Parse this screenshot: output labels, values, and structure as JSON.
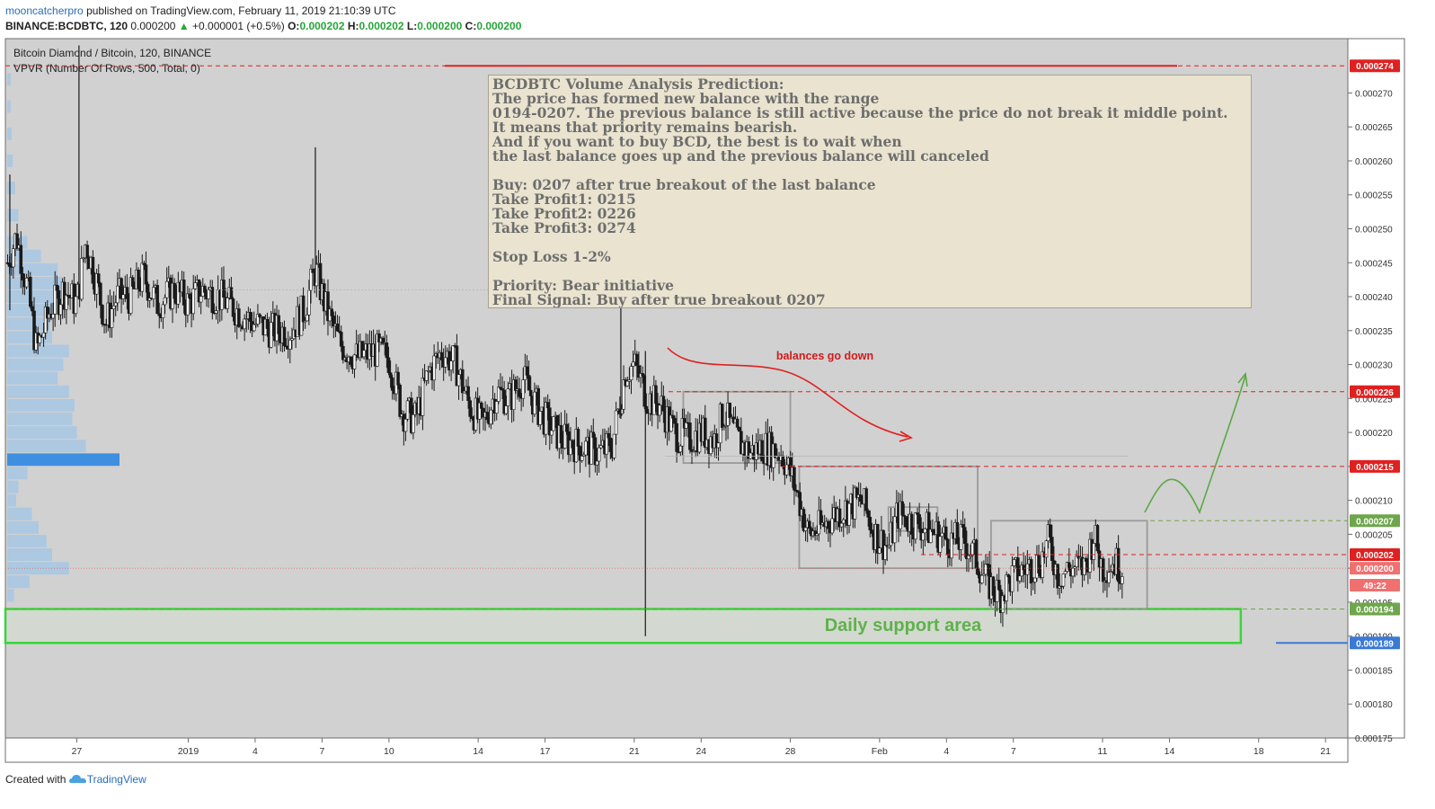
{
  "header": {
    "author": "mooncatcherpro",
    "published": "published on TradingView.com, February 11, 2019 21:10:39 UTC",
    "symbol": "BINANCE:BCDBTC, 120",
    "last": "0.000200",
    "change_arrow": "▲",
    "change": "+0.000001 (+0.5%)",
    "o_label": "O:",
    "o": "0.000202",
    "h_label": "H:",
    "h": "0.000202",
    "l_label": "L:",
    "l": "0.000200",
    "c_label": "C:",
    "c": "0.000200"
  },
  "legend": {
    "title": "Bitcoin Diamond / Bitcoin, 120, BINANCE",
    "indicator": "VPVR (Number Of Rows, 500, Total, 0)"
  },
  "annotation": {
    "lines": [
      "BCDBTC Volume Analysis Prediction:",
      "The price has formed new balance with the range",
      "0194-0207. The previous balance is still active because the price do not break it middle point.",
      "It means that priority remains bearish.",
      "And if you want to buy BCD, the best is to wait when",
      "the last balance goes up and the previous balance will canceled",
      "",
      "Buy: 0207 after true breakout of the last balance",
      "Take Profit1: 0215",
      "Take Profit2: 0226",
      "Take Profit3: 0274",
      "",
      "Stop Loss 1-2%",
      "",
      "Priority: Bear initiative",
      "Final Signal: Buy after true breakout 0207"
    ],
    "balances_label": "balances go down",
    "support_label": "Daily support area"
  },
  "footer": {
    "created": "Created with",
    "brand": "TradingView"
  },
  "chart_data": {
    "type": "candlestick",
    "title": "Bitcoin Diamond / Bitcoin, 120, BINANCE",
    "y_ticks": [
      "0.000270",
      "0.000265",
      "0.000260",
      "0.000255",
      "0.000250",
      "0.000245",
      "0.000240",
      "0.000235",
      "0.000230",
      "0.000225",
      "0.000220",
      "0.000215",
      "0.000210",
      "0.000205",
      "0.000200",
      "0.000195",
      "0.000190",
      "0.000185",
      "0.000180",
      "0.000175"
    ],
    "x_ticks": [
      {
        "label": "27",
        "day": 27
      },
      {
        "label": "2019",
        "day": 32
      },
      {
        "label": "4",
        "day": 35
      },
      {
        "label": "7",
        "day": 38
      },
      {
        "label": "10",
        "day": 41
      },
      {
        "label": "14",
        "day": 45
      },
      {
        "label": "17",
        "day": 48
      },
      {
        "label": "21",
        "day": 52
      },
      {
        "label": "24",
        "day": 55
      },
      {
        "label": "28",
        "day": 59
      },
      {
        "label": "Feb",
        "day": 63
      },
      {
        "label": "4",
        "day": 66
      },
      {
        "label": "7",
        "day": 69
      },
      {
        "label": "11",
        "day": 73
      },
      {
        "label": "14",
        "day": 76
      },
      {
        "label": "18",
        "day": 80
      },
      {
        "label": "21",
        "day": 83
      }
    ],
    "ylim": [
      0.000175,
      0.000278
    ],
    "xlim_days": [
      23.8,
      84.0
    ],
    "price_levels": [
      {
        "label": "0.000274",
        "value": 0.000274,
        "color": "#e02020"
      },
      {
        "label": "0.000226",
        "value": 0.000226,
        "color": "#e02020"
      },
      {
        "label": "0.000215",
        "value": 0.000215,
        "color": "#e02020"
      },
      {
        "label": "0.000207",
        "value": 0.000207,
        "color": "#6ea64b"
      },
      {
        "label": "0.000202",
        "value": 0.000202,
        "color": "#e02020"
      },
      {
        "label": "0.000200",
        "value": 0.0002,
        "color": "#f07070"
      },
      {
        "label": "49:22",
        "value": 0.0001975,
        "color": "#f07070"
      },
      {
        "label": "0.000194",
        "value": 0.000194,
        "color": "#6ea64b"
      },
      {
        "label": "0.000189",
        "value": 0.000189,
        "color": "#3a79d6"
      }
    ],
    "balance_zones": [
      {
        "from_day": 54.2,
        "to_day": 59.0,
        "low": 0.0002155,
        "high": 0.000226
      },
      {
        "from_day": 59.4,
        "to_day": 67.4,
        "low": 0.0002,
        "high": 0.000215
      },
      {
        "from_day": 63.4,
        "to_day": 65.6,
        "low": 0.0002055,
        "high": 0.000209
      },
      {
        "from_day": 68.0,
        "to_day": 75.0,
        "low": 0.000194,
        "high": 0.000207
      }
    ],
    "support_zone": {
      "from_day": 23.8,
      "to_day": 79.2,
      "low": 0.000189,
      "high": 0.000194
    },
    "path": [
      [
        23.9,
        0.000245
      ],
      [
        24.3,
        0.000249
      ],
      [
        24.8,
        0.000241
      ],
      [
        25.2,
        0.000232
      ],
      [
        25.8,
        0.000238
      ],
      [
        26.4,
        0.000241
      ],
      [
        27.0,
        0.000239
      ],
      [
        27.4,
        0.000248
      ],
      [
        27.9,
        0.000242
      ],
      [
        28.3,
        0.000236
      ],
      [
        28.8,
        0.00024
      ],
      [
        29.4,
        0.00024
      ],
      [
        30.0,
        0.000243
      ],
      [
        30.6,
        0.000239
      ],
      [
        31.4,
        0.000241
      ],
      [
        32.0,
        0.000239
      ],
      [
        32.6,
        0.000241
      ],
      [
        33.4,
        0.00024
      ],
      [
        34.2,
        0.000238
      ],
      [
        35.0,
        0.000236
      ],
      [
        35.8,
        0.000235
      ],
      [
        36.6,
        0.000235
      ],
      [
        37.2,
        0.000238
      ],
      [
        37.7,
        0.000244
      ],
      [
        38.2,
        0.000238
      ],
      [
        38.8,
        0.000233
      ],
      [
        39.6,
        0.000231
      ],
      [
        40.4,
        0.000232
      ],
      [
        41.0,
        0.000231
      ],
      [
        41.6,
        0.000223
      ],
      [
        42.2,
        0.000222
      ],
      [
        42.8,
        0.000229
      ],
      [
        43.4,
        0.000232
      ],
      [
        44.0,
        0.00023
      ],
      [
        44.6,
        0.000224
      ],
      [
        45.2,
        0.000221
      ],
      [
        45.8,
        0.000226
      ],
      [
        46.4,
        0.000225
      ],
      [
        47.0,
        0.000228
      ],
      [
        47.6,
        0.000224
      ],
      [
        48.2,
        0.000221
      ],
      [
        48.8,
        0.000219
      ],
      [
        49.6,
        0.000218
      ],
      [
        50.4,
        0.000217
      ],
      [
        51.0,
        0.000218
      ],
      [
        51.6,
        0.000229
      ],
      [
        52.0,
        0.00023
      ],
      [
        52.6,
        0.000225
      ],
      [
        53.2,
        0.000224
      ],
      [
        53.8,
        0.00022
      ],
      [
        54.4,
        0.000219
      ],
      [
        55.0,
        0.00022
      ],
      [
        55.6,
        0.000219
      ],
      [
        56.0,
        0.000223
      ],
      [
        56.6,
        0.000219
      ],
      [
        57.2,
        0.000217
      ],
      [
        57.8,
        0.000218
      ],
      [
        58.6,
        0.000217
      ],
      [
        59.0,
        0.000214
      ],
      [
        59.4,
        0.00021
      ],
      [
        59.8,
        0.000205
      ],
      [
        60.4,
        0.000206
      ],
      [
        61.0,
        0.000208
      ],
      [
        61.6,
        0.000209
      ],
      [
        62.2,
        0.00021
      ],
      [
        62.8,
        0.000205
      ],
      [
        63.4,
        0.000203
      ],
      [
        63.8,
        0.000208
      ],
      [
        64.4,
        0.000207
      ],
      [
        65.0,
        0.000206
      ],
      [
        65.6,
        0.000205
      ],
      [
        66.2,
        0.000204
      ],
      [
        66.8,
        0.000204
      ],
      [
        67.4,
        0.000201
      ],
      [
        67.8,
        0.000198
      ],
      [
        68.4,
        0.000196
      ],
      [
        69.0,
        0.000199
      ],
      [
        69.6,
        0.0002
      ],
      [
        70.2,
        0.000201
      ],
      [
        70.6,
        0.000204
      ],
      [
        71.0,
        0.000199
      ],
      [
        71.6,
        0.0002
      ],
      [
        72.2,
        0.0002
      ],
      [
        72.6,
        0.000205
      ],
      [
        73.0,
        0.0002
      ],
      [
        73.5,
        0.000201
      ],
      [
        73.9,
        0.0002
      ]
    ],
    "vpvr_rows": [
      {
        "price": 0.000272,
        "volume": 0.03
      },
      {
        "price": 0.000268,
        "volume": 0.03
      },
      {
        "price": 0.000264,
        "volume": 0.04
      },
      {
        "price": 0.00026,
        "volume": 0.05
      },
      {
        "price": 0.000256,
        "volume": 0.07
      },
      {
        "price": 0.000252,
        "volume": 0.1
      },
      {
        "price": 0.000248,
        "volume": 0.18
      },
      {
        "price": 0.000246,
        "volume": 0.3
      },
      {
        "price": 0.000244,
        "volume": 0.45
      },
      {
        "price": 0.000242,
        "volume": 0.5
      },
      {
        "price": 0.00024,
        "volume": 0.48
      },
      {
        "price": 0.000238,
        "volume": 0.42
      },
      {
        "price": 0.000236,
        "volume": 0.38
      },
      {
        "price": 0.000234,
        "volume": 0.4
      },
      {
        "price": 0.000232,
        "volume": 0.55
      },
      {
        "price": 0.00023,
        "volume": 0.5
      },
      {
        "price": 0.000228,
        "volume": 0.45
      },
      {
        "price": 0.000226,
        "volume": 0.55
      },
      {
        "price": 0.000224,
        "volume": 0.6
      },
      {
        "price": 0.000222,
        "volume": 0.58
      },
      {
        "price": 0.00022,
        "volume": 0.62
      },
      {
        "price": 0.000218,
        "volume": 0.7
      },
      {
        "price": 0.000216,
        "volume": 1.0
      },
      {
        "price": 0.000214,
        "volume": 0.18
      },
      {
        "price": 0.000212,
        "volume": 0.1
      },
      {
        "price": 0.00021,
        "volume": 0.08
      },
      {
        "price": 0.000208,
        "volume": 0.22
      },
      {
        "price": 0.000206,
        "volume": 0.28
      },
      {
        "price": 0.000204,
        "volume": 0.35
      },
      {
        "price": 0.000202,
        "volume": 0.4
      },
      {
        "price": 0.0002,
        "volume": 0.55
      },
      {
        "price": 0.000198,
        "volume": 0.2
      },
      {
        "price": 0.000196,
        "volume": 0.06
      }
    ],
    "vpvr_poc": 0.000216
  }
}
